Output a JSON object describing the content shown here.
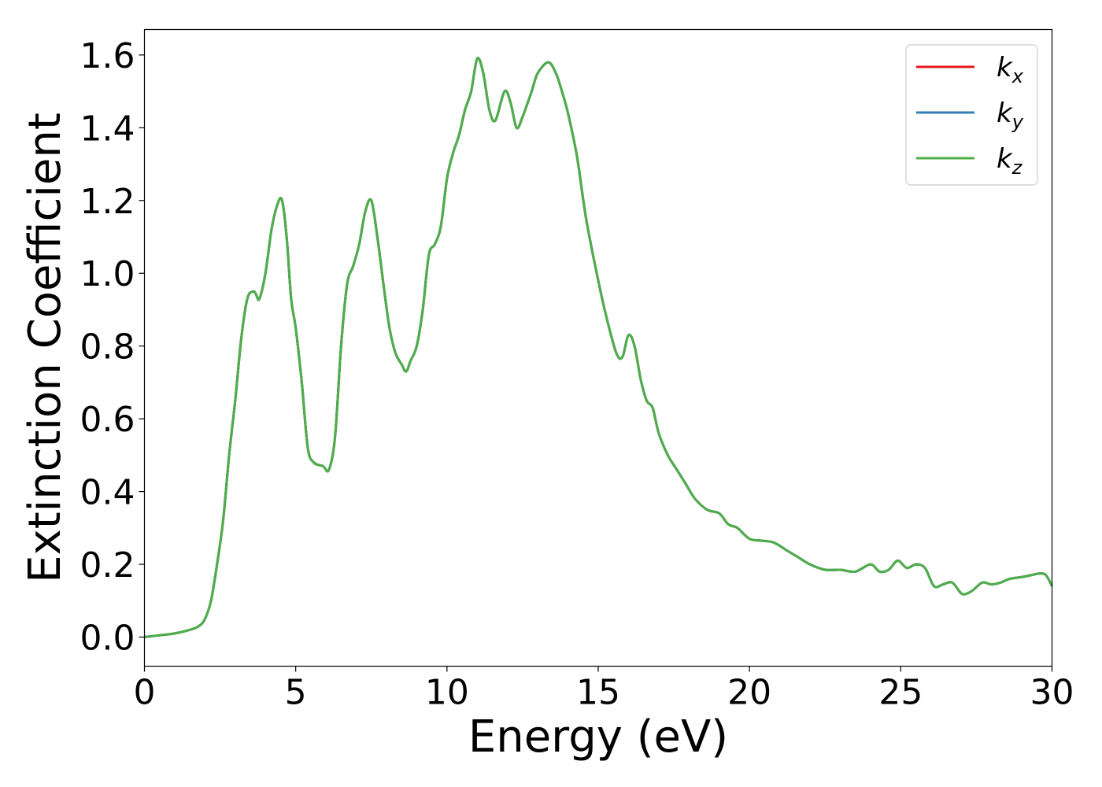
{
  "chart_data": {
    "type": "line",
    "xlabel": "Energy (eV)",
    "ylabel": "Extinction Coefficient",
    "xlim": [
      0,
      30
    ],
    "ylim": [
      -0.08,
      1.67
    ],
    "x_ticks": [
      0,
      5,
      10,
      15,
      20,
      25,
      30
    ],
    "y_ticks": [
      0.0,
      0.2,
      0.4,
      0.6,
      0.8,
      1.0,
      1.2,
      1.4,
      1.6
    ],
    "x_tick_labels": [
      "0",
      "5",
      "10",
      "15",
      "20",
      "25",
      "30"
    ],
    "y_tick_labels": [
      "0.0",
      "0.2",
      "0.4",
      "0.6",
      "0.8",
      "1.0",
      "1.2",
      "1.4",
      "1.6"
    ],
    "grid": false,
    "legend_position": "top-right",
    "x": [
      0,
      0.5,
      1,
      1.5,
      1.8,
      2.0,
      2.2,
      2.4,
      2.6,
      2.8,
      3.0,
      3.2,
      3.4,
      3.6,
      3.7,
      3.8,
      4.0,
      4.2,
      4.4,
      4.55,
      4.7,
      4.85,
      5.0,
      5.2,
      5.4,
      5.6,
      5.9,
      6.1,
      6.3,
      6.5,
      6.7,
      6.9,
      7.1,
      7.3,
      7.5,
      7.7,
      7.9,
      8.1,
      8.3,
      8.5,
      8.65,
      8.8,
      9.0,
      9.2,
      9.4,
      9.6,
      9.8,
      10.0,
      10.2,
      10.4,
      10.6,
      10.8,
      11.0,
      11.2,
      11.4,
      11.6,
      11.9,
      12.1,
      12.3,
      12.5,
      12.8,
      13.0,
      13.35,
      13.6,
      13.8,
      14.0,
      14.3,
      14.6,
      15.0,
      15.3,
      15.6,
      15.8,
      16.0,
      16.2,
      16.4,
      16.6,
      16.8,
      17.0,
      17.3,
      17.6,
      17.9,
      18.2,
      18.6,
      19.0,
      19.3,
      19.6,
      20.0,
      20.4,
      20.8,
      21.2,
      21.6,
      22.0,
      22.5,
      23.0,
      23.5,
      24.0,
      24.3,
      24.6,
      24.9,
      25.2,
      25.5,
      25.8,
      26.1,
      26.4,
      26.7,
      27.0,
      27.2,
      27.4,
      27.7,
      28.0,
      28.3,
      28.6,
      29.0,
      29.3,
      29.6,
      29.8,
      30.0
    ],
    "series": [
      {
        "name": "k_x",
        "color": "#e41a1c",
        "values": [
          0.0,
          0.005,
          0.01,
          0.02,
          0.03,
          0.05,
          0.1,
          0.2,
          0.32,
          0.5,
          0.65,
          0.82,
          0.93,
          0.95,
          0.94,
          0.93,
          1.0,
          1.12,
          1.19,
          1.2,
          1.1,
          0.93,
          0.85,
          0.7,
          0.52,
          0.48,
          0.47,
          0.46,
          0.55,
          0.8,
          0.97,
          1.02,
          1.08,
          1.17,
          1.2,
          1.1,
          0.97,
          0.85,
          0.78,
          0.75,
          0.73,
          0.76,
          0.8,
          0.9,
          1.05,
          1.08,
          1.13,
          1.26,
          1.33,
          1.38,
          1.45,
          1.5,
          1.59,
          1.55,
          1.45,
          1.42,
          1.5,
          1.47,
          1.4,
          1.43,
          1.5,
          1.55,
          1.58,
          1.55,
          1.5,
          1.44,
          1.32,
          1.15,
          0.98,
          0.87,
          0.78,
          0.77,
          0.83,
          0.8,
          0.71,
          0.65,
          0.63,
          0.56,
          0.5,
          0.46,
          0.42,
          0.38,
          0.35,
          0.34,
          0.31,
          0.3,
          0.27,
          0.265,
          0.26,
          0.24,
          0.22,
          0.2,
          0.185,
          0.185,
          0.18,
          0.2,
          0.18,
          0.185,
          0.21,
          0.19,
          0.2,
          0.19,
          0.14,
          0.145,
          0.15,
          0.12,
          0.12,
          0.13,
          0.15,
          0.145,
          0.15,
          0.16,
          0.165,
          0.17,
          0.175,
          0.17,
          0.14
        ]
      },
      {
        "name": "k_y",
        "color": "#377eb8",
        "values": [
          0.0,
          0.005,
          0.01,
          0.02,
          0.03,
          0.05,
          0.1,
          0.2,
          0.32,
          0.5,
          0.65,
          0.82,
          0.93,
          0.95,
          0.94,
          0.93,
          1.0,
          1.12,
          1.19,
          1.2,
          1.1,
          0.93,
          0.85,
          0.7,
          0.52,
          0.48,
          0.47,
          0.46,
          0.55,
          0.8,
          0.97,
          1.02,
          1.08,
          1.17,
          1.2,
          1.1,
          0.97,
          0.85,
          0.78,
          0.75,
          0.73,
          0.76,
          0.8,
          0.9,
          1.05,
          1.08,
          1.13,
          1.26,
          1.33,
          1.38,
          1.45,
          1.5,
          1.59,
          1.55,
          1.45,
          1.42,
          1.5,
          1.47,
          1.4,
          1.43,
          1.5,
          1.55,
          1.58,
          1.55,
          1.5,
          1.44,
          1.32,
          1.15,
          0.98,
          0.87,
          0.78,
          0.77,
          0.83,
          0.8,
          0.71,
          0.65,
          0.63,
          0.56,
          0.5,
          0.46,
          0.42,
          0.38,
          0.35,
          0.34,
          0.31,
          0.3,
          0.27,
          0.265,
          0.26,
          0.24,
          0.22,
          0.2,
          0.185,
          0.185,
          0.18,
          0.2,
          0.18,
          0.185,
          0.21,
          0.19,
          0.2,
          0.19,
          0.14,
          0.145,
          0.15,
          0.12,
          0.12,
          0.13,
          0.15,
          0.145,
          0.15,
          0.16,
          0.165,
          0.17,
          0.175,
          0.17,
          0.14
        ]
      },
      {
        "name": "k_z",
        "color": "#4daf4a",
        "values": [
          0.0,
          0.005,
          0.01,
          0.02,
          0.03,
          0.05,
          0.1,
          0.2,
          0.32,
          0.5,
          0.65,
          0.82,
          0.93,
          0.95,
          0.94,
          0.93,
          1.0,
          1.12,
          1.19,
          1.2,
          1.1,
          0.93,
          0.85,
          0.7,
          0.52,
          0.48,
          0.47,
          0.46,
          0.55,
          0.8,
          0.97,
          1.02,
          1.08,
          1.17,
          1.2,
          1.1,
          0.97,
          0.85,
          0.78,
          0.75,
          0.73,
          0.76,
          0.8,
          0.9,
          1.05,
          1.08,
          1.13,
          1.26,
          1.33,
          1.38,
          1.45,
          1.5,
          1.59,
          1.55,
          1.45,
          1.42,
          1.5,
          1.47,
          1.4,
          1.43,
          1.5,
          1.55,
          1.58,
          1.55,
          1.5,
          1.44,
          1.32,
          1.15,
          0.98,
          0.87,
          0.78,
          0.77,
          0.83,
          0.8,
          0.71,
          0.65,
          0.63,
          0.56,
          0.5,
          0.46,
          0.42,
          0.38,
          0.35,
          0.34,
          0.31,
          0.3,
          0.27,
          0.265,
          0.26,
          0.24,
          0.22,
          0.2,
          0.185,
          0.185,
          0.18,
          0.2,
          0.18,
          0.185,
          0.21,
          0.19,
          0.2,
          0.19,
          0.14,
          0.145,
          0.15,
          0.12,
          0.12,
          0.13,
          0.15,
          0.145,
          0.15,
          0.16,
          0.165,
          0.17,
          0.175,
          0.17,
          0.14
        ]
      }
    ],
    "legend": [
      {
        "base": "k",
        "sub": "x",
        "color": "#e41a1c"
      },
      {
        "base": "k",
        "sub": "y",
        "color": "#377eb8"
      },
      {
        "base": "k",
        "sub": "z",
        "color": "#4daf4a"
      }
    ]
  }
}
